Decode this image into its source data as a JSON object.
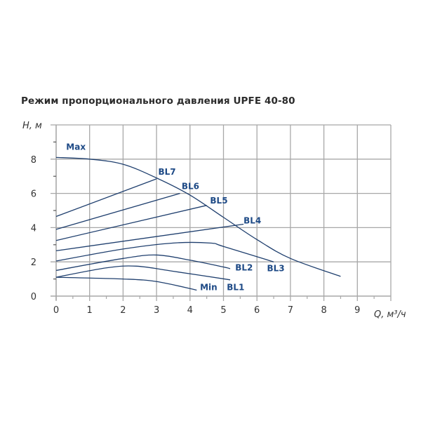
{
  "chart_data": {
    "type": "line",
    "title": "Режим пропорционального давления UPFE 40-80",
    "xlabel": "Q, м³/ч",
    "ylabel": "H, м",
    "xlim": [
      0,
      10
    ],
    "ylim": [
      0,
      10
    ],
    "x_ticks": [
      "0",
      "1",
      "2",
      "3",
      "4",
      "5",
      "6",
      "7",
      "8",
      "9"
    ],
    "y_ticks": [
      "0",
      "2",
      "4",
      "6",
      "8"
    ],
    "grid": true,
    "line_color": "#1f3f6e",
    "label_color": "#1e4a86",
    "series": [
      {
        "name": "Max",
        "points": [
          [
            0,
            8.1
          ],
          [
            1,
            8.0
          ],
          [
            2,
            7.7
          ],
          [
            3,
            6.9
          ],
          [
            4,
            5.9
          ],
          [
            5,
            4.6
          ],
          [
            6,
            3.3
          ],
          [
            7,
            2.2
          ],
          [
            8.5,
            1.15
          ]
        ],
        "label_pos": [
          0.3,
          8.55
        ]
      },
      {
        "name": "BL7",
        "points": [
          [
            0,
            4.65
          ],
          [
            3,
            6.85
          ]
        ],
        "label_pos": [
          3.05,
          7.1
        ]
      },
      {
        "name": "BL6",
        "points": [
          [
            0,
            3.9
          ],
          [
            3.7,
            6.0
          ]
        ],
        "label_pos": [
          3.75,
          6.25
        ]
      },
      {
        "name": "BL5",
        "points": [
          [
            0,
            3.25
          ],
          [
            4.5,
            5.3
          ]
        ],
        "label_pos": [
          4.6,
          5.4
        ]
      },
      {
        "name": "BL4",
        "points": [
          [
            0,
            2.65
          ],
          [
            5.6,
            4.2
          ]
        ],
        "label_pos": [
          5.6,
          4.25
        ]
      },
      {
        "name": "BL3",
        "points": [
          [
            0,
            2.05
          ],
          [
            2,
            2.75
          ],
          [
            3.5,
            3.1
          ],
          [
            4.6,
            3.1
          ],
          [
            5,
            2.9
          ],
          [
            6.5,
            2.0
          ]
        ],
        "label_pos": [
          6.3,
          1.45
        ]
      },
      {
        "name": "BL2",
        "points": [
          [
            0,
            1.5
          ],
          [
            2,
            2.2
          ],
          [
            3,
            2.4
          ],
          [
            4,
            2.1
          ],
          [
            5,
            1.7
          ],
          [
            5.2,
            1.6
          ]
        ],
        "label_pos": [
          5.35,
          1.5
        ]
      },
      {
        "name": "BL1",
        "points": [
          [
            0,
            1.1
          ],
          [
            1.5,
            1.65
          ],
          [
            2.4,
            1.75
          ],
          [
            3.5,
            1.45
          ],
          [
            5.2,
            0.95
          ]
        ],
        "label_pos": [
          5.1,
          0.35
        ]
      },
      {
        "name": "Min",
        "points": [
          [
            0,
            1.1
          ],
          [
            2,
            1.0
          ],
          [
            3,
            0.85
          ],
          [
            4.2,
            0.35
          ]
        ],
        "label_pos": [
          4.3,
          0.35
        ]
      }
    ]
  }
}
